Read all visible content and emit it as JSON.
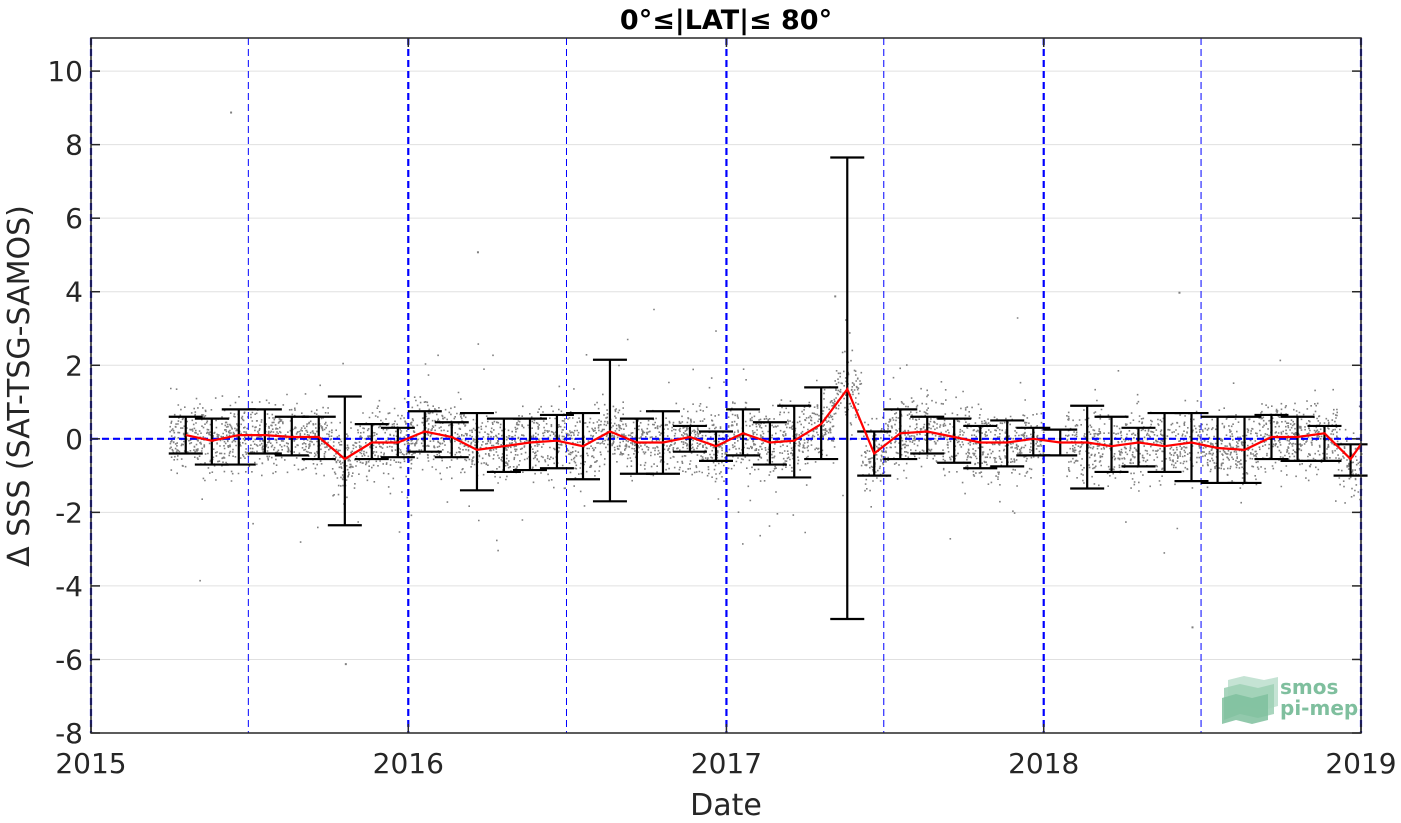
{
  "chart_data": {
    "type": "scatter",
    "title": "0°≤|LAT|≤ 80°",
    "xlabel": "Date",
    "ylabel": "Δ SSS (SAT-TSG-SAMOS)",
    "xlim": [
      "2015-01-01",
      "2019-01-01"
    ],
    "ylim": [
      -8,
      10.9
    ],
    "x_ticks": [
      "2015",
      "2016",
      "2017",
      "2018",
      "2019"
    ],
    "y_ticks": [
      "-8",
      "-6",
      "-4",
      "-2",
      "0",
      "2",
      "4",
      "6",
      "8",
      "10"
    ],
    "grid": "horizontal",
    "year_markers": [
      "2015-01-01",
      "2016-01-01",
      "2017-01-01",
      "2018-01-01",
      "2019-01-01"
    ],
    "half_year_markers": [
      "2015-07-01",
      "2016-07-01",
      "2017-07-01",
      "2018-07-01"
    ],
    "zero_reference": 0,
    "colors": {
      "scatter": "#808080",
      "mean": "#ff0000",
      "errorbar": "#000000",
      "markers": "#0000ff",
      "grid": "#e0e0e0"
    },
    "series": [
      {
        "type": "errorbar_mean",
        "x": [
          "2015-04-20",
          "2015-05-20",
          "2015-06-20",
          "2015-07-20",
          "2015-08-20",
          "2015-09-20",
          "2015-10-20",
          "2015-11-20",
          "2015-12-20",
          "2016-01-20",
          "2016-02-20",
          "2016-03-20",
          "2016-04-20",
          "2016-05-20",
          "2016-06-20",
          "2016-07-20",
          "2016-08-20",
          "2016-09-20",
          "2016-10-20",
          "2016-11-20",
          "2016-12-20",
          "2017-01-20",
          "2017-02-20",
          "2017-03-20",
          "2017-04-20",
          "2017-05-20",
          "2017-06-20",
          "2017-07-20",
          "2017-08-20",
          "2017-09-20",
          "2017-10-20",
          "2017-11-20",
          "2017-12-20",
          "2018-01-20",
          "2018-02-20",
          "2018-03-20",
          "2018-04-20",
          "2018-05-20",
          "2018-06-20",
          "2018-07-20",
          "2018-08-20",
          "2018-09-20",
          "2018-10-20",
          "2018-11-20",
          "2018-12-20"
        ],
        "mean": [
          0.1,
          -0.05,
          0.1,
          0.1,
          0.05,
          0.05,
          -0.55,
          -0.1,
          -0.1,
          0.2,
          0.05,
          -0.3,
          -0.2,
          -0.1,
          -0.05,
          -0.2,
          0.2,
          -0.1,
          -0.1,
          0.05,
          -0.2,
          0.15,
          -0.1,
          -0.05,
          0.4,
          1.35,
          -0.4,
          0.15,
          0.2,
          0.05,
          -0.1,
          -0.1,
          0.0,
          -0.1,
          -0.1,
          -0.2,
          -0.1,
          -0.2,
          -0.1,
          -0.25,
          -0.3,
          0.05,
          0.05,
          0.15,
          -0.55
        ],
        "upper": [
          0.6,
          0.55,
          0.8,
          0.8,
          0.6,
          0.6,
          1.15,
          0.4,
          0.3,
          0.75,
          0.45,
          0.7,
          0.55,
          0.55,
          0.65,
          0.7,
          2.15,
          0.55,
          0.75,
          0.35,
          0.2,
          0.8,
          0.45,
          0.9,
          1.4,
          7.65,
          0.2,
          0.8,
          0.6,
          0.55,
          0.35,
          0.5,
          0.3,
          0.25,
          0.9,
          0.6,
          0.3,
          0.7,
          0.7,
          0.6,
          0.6,
          0.65,
          0.6,
          0.35,
          -0.15
        ],
        "lower": [
          -0.4,
          -0.7,
          -0.7,
          -0.4,
          -0.45,
          -0.55,
          -2.35,
          -0.55,
          -0.5,
          -0.35,
          -0.5,
          -1.4,
          -0.9,
          -0.85,
          -0.8,
          -1.1,
          -1.7,
          -0.95,
          -0.95,
          -0.35,
          -0.6,
          -0.45,
          -0.7,
          -1.05,
          -0.55,
          -4.9,
          -1.0,
          -0.55,
          -0.4,
          -0.65,
          -0.8,
          -0.75,
          -0.45,
          -0.45,
          -1.35,
          -0.9,
          -0.75,
          -0.9,
          -1.15,
          -1.2,
          -1.2,
          -0.55,
          -0.6,
          -0.6,
          -1.0
        ]
      },
      {
        "type": "scatter_density",
        "x_range": [
          "2015-04-01",
          "2019-01-01"
        ],
        "typical_range": [
          -1.5,
          2.0
        ],
        "extreme_points": [
          {
            "x": "2015-06-10",
            "y": 8.9
          },
          {
            "x": "2015-10-20",
            "y": -6.1
          },
          {
            "x": "2016-03-20",
            "y": 5.1
          },
          {
            "x": "2017-05-05",
            "y": 3.9
          },
          {
            "x": "2018-06-05",
            "y": 4.0
          },
          {
            "x": "2018-06-20",
            "y": -5.1
          }
        ]
      }
    ]
  },
  "watermark": {
    "line1": "smos",
    "line2": "pi-mep"
  }
}
